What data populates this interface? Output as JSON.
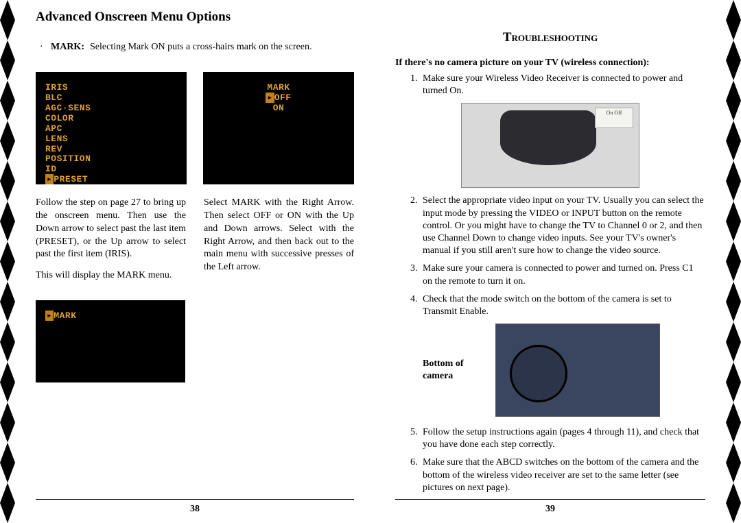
{
  "decor": {
    "diamond_count": 13,
    "diamond_height": 58.7,
    "fill": "#000000"
  },
  "left": {
    "heading": "Advanced Onscreen Menu Options",
    "bullet_dot": "·",
    "bullet_label": "MARK:",
    "bullet_text": "Selecting Mark ON puts a cross-hairs mark on the screen.",
    "osd1_lines": [
      "IRIS",
      "BLC",
      "AGC·SENS",
      "COLOR",
      "APC",
      "LENS",
      "REV",
      "POSITION",
      "ID"
    ],
    "osd1_last_hl": "▸",
    "osd1_last_text": "PRESET",
    "osd2_line1": "MARK",
    "osd2_line2_hl": "▸",
    "osd2_line2_text": "OFF",
    "osd2_line3": "ON",
    "col1_p1": "Follow the step on page 27 to bring up the onscreen menu. Then use the Down arrow to select past the last item (PRESET), or the Up arrow to select past the first item (IRIS).",
    "col1_p2": "This will display the MARK menu.",
    "col2_p1": "Select MARK with the Right Arrow. Then select OFF or ON with the Up and Down arrows. Select with the Right Arrow, and then back out to the main menu with successive presses of the Left arrow.",
    "osd3_hl": "▸",
    "osd3_text": "MARK",
    "page_num": "38"
  },
  "right": {
    "heading": "Troubleshooting",
    "sub": "If there's no camera picture on your TV (wireless connection):",
    "step1": "Make sure your Wireless Video Receiver is connected to power and turned On.",
    "step2": "Select the appropriate video input on your TV. Usually you can select the input mode by pressing the VIDEO or INPUT button on the remote control. Or you might have to change the TV to Channel 0 or 2, and then use Channel Down to change video inputs. See your TV's owner's manual if you still aren't sure how to change the video source.",
    "step3": "Make sure your camera is connected to power and turned on. Press C1 on the remote to turn it on.",
    "step4": "Check that the mode switch on the bottom of the camera is set to Transmit Enable.",
    "step5": "Follow the setup instructions again (pages 4 through 11), and check that you have done each step correctly.",
    "step6": "Make sure that the ABCD switches on the bottom of the camera and the bottom of the wireless video receiver are set to the same letter (see pictures on next page).",
    "bottom_label": "Bottom of camera",
    "switch_label": "On        Off",
    "page_num": "39"
  },
  "colors": {
    "osd_bg": "#000000",
    "osd_text": "#e0a030",
    "osd_highlight_bg": "#c08020",
    "page_bg": "#ffffff",
    "divider": "#000000"
  }
}
